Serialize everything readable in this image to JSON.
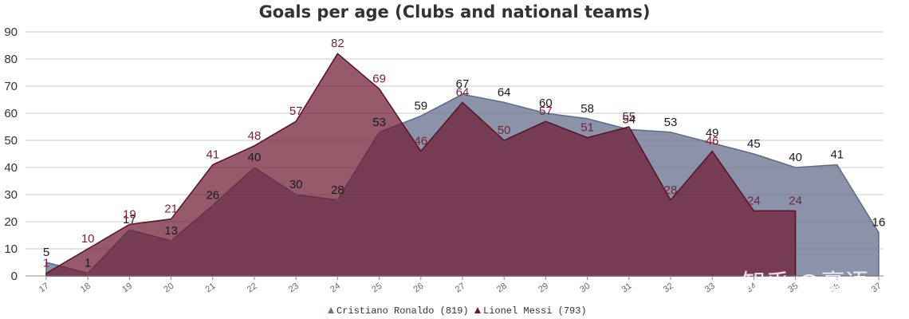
{
  "chart_data": {
    "type": "area",
    "title": "Goals per age (Clubs and national teams)",
    "xlabel": "",
    "ylabel": "",
    "ylim": [
      0,
      90
    ],
    "yticks": [
      0,
      10,
      20,
      30,
      40,
      50,
      60,
      70,
      80,
      90
    ],
    "grid": true,
    "legend_position": "bottom-center",
    "categories": [
      "17",
      "18",
      "19",
      "20",
      "21",
      "22",
      "23",
      "24",
      "25",
      "26",
      "27",
      "28",
      "29",
      "30",
      "31",
      "32",
      "33",
      "34",
      "35",
      "36",
      "37"
    ],
    "series": [
      {
        "name": "Cristiano Ronaldo (819)",
        "color": "#6b7590",
        "values": [
          5,
          1,
          17,
          13,
          26,
          40,
          30,
          28,
          53,
          59,
          67,
          64,
          60,
          58,
          54,
          53,
          49,
          45,
          40,
          41,
          16
        ]
      },
      {
        "name": "Lionel Messi (793)",
        "color": "#6e1a32",
        "values": [
          1,
          10,
          19,
          21,
          41,
          48,
          57,
          82,
          69,
          46,
          64,
          50,
          57,
          51,
          55,
          28,
          46,
          24,
          24,
          null,
          null
        ]
      }
    ]
  },
  "watermark": {
    "text": "知乎 @豪语"
  }
}
